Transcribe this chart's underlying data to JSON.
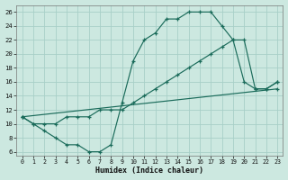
{
  "xlabel": "Humidex (Indice chaleur)",
  "bg_color": "#cce8e0",
  "grid_color": "#a8cfc8",
  "line_color": "#1a6b5a",
  "xlim": [
    -0.5,
    23.5
  ],
  "ylim": [
    5.5,
    27
  ],
  "xticks": [
    0,
    1,
    2,
    3,
    4,
    5,
    6,
    7,
    8,
    9,
    10,
    11,
    12,
    13,
    14,
    15,
    16,
    17,
    18,
    19,
    20,
    21,
    22,
    23
  ],
  "yticks": [
    6,
    8,
    10,
    12,
    14,
    16,
    18,
    20,
    22,
    24,
    26
  ],
  "curve1_x": [
    0,
    1,
    2,
    3,
    4,
    5,
    6,
    7,
    8,
    9,
    10,
    11,
    12,
    13,
    14,
    15,
    16,
    17,
    18,
    19,
    20,
    21,
    22,
    23
  ],
  "curve1_y": [
    11,
    10,
    9,
    8,
    7,
    7,
    6,
    6,
    7,
    13,
    19,
    22,
    23,
    25,
    25,
    26,
    26,
    26,
    24,
    22,
    16,
    15,
    15,
    16
  ],
  "curve2_x": [
    0,
    1,
    2,
    3,
    4,
    5,
    6,
    7,
    8,
    9,
    10,
    11,
    12,
    13,
    14,
    15,
    16,
    17,
    18,
    19,
    20,
    21,
    22,
    23
  ],
  "curve2_y": [
    11,
    10,
    10,
    10,
    11,
    11,
    11,
    12,
    12,
    12,
    13,
    14,
    15,
    16,
    17,
    18,
    19,
    20,
    21,
    22,
    22,
    15,
    15,
    16
  ],
  "line3_x": [
    0,
    23
  ],
  "line3_y": [
    11,
    15
  ]
}
